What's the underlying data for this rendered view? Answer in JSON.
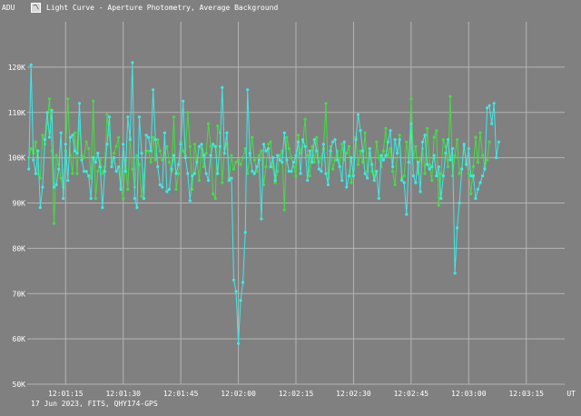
{
  "window": {
    "title": "Light Curve - Aperture Photometry, Average Background",
    "icon": "light-curve-icon"
  },
  "footer": {
    "text": "17 Jun 2023, FITS, QHY174-GPS"
  },
  "colors": {
    "background": "#808080",
    "grid": "#b4b4b4",
    "series_cyan": "#40e8e8",
    "series_green": "#44dd44",
    "text": "#ffffff"
  },
  "chart_data": {
    "type": "line",
    "ylabel": "ADU",
    "xlabel": "UT",
    "grid": true,
    "ylim": [
      50000,
      130000
    ],
    "xlim": [
      "12:01:05",
      "12:03:25"
    ],
    "x_ticks": [
      "12:01:15",
      "12:01:30",
      "12:01:45",
      "12:02:00",
      "12:02:15",
      "12:02:30",
      "12:02:45",
      "12:03:00",
      "12:03:15"
    ],
    "y_ticks": [
      {
        "value": 50000,
        "label": "50K"
      },
      {
        "value": 60000,
        "label": "60K"
      },
      {
        "value": 70000,
        "label": "70K"
      },
      {
        "value": 80000,
        "label": "80K"
      },
      {
        "value": 90000,
        "label": "90K"
      },
      {
        "value": 100000,
        "label": "100K"
      },
      {
        "value": 110000,
        "label": "110K"
      },
      {
        "value": 120000,
        "label": "120K"
      }
    ],
    "x_start": "12:01:05.4",
    "x_step_seconds": 0.6,
    "series": [
      {
        "color": "#40e8e8",
        "values": [
          97500,
          120500,
          99500,
          96500,
          101500,
          89000,
          93500,
          104000,
          110000,
          104500,
          110500,
          93500,
          94000,
          97500,
          105500,
          91000,
          103000,
          95000,
          104500,
          105000,
          101500,
          101000,
          112000,
          99500,
          97000,
          97000,
          96000,
          91000,
          100000,
          99000,
          101000,
          98000,
          89000,
          97000,
          103000,
          109000,
          98000,
          100000,
          97000,
          98000,
          93000,
          103000,
          97000,
          109000,
          104000,
          121000,
          91000,
          89000,
          109000,
          101000,
          91000,
          105000,
          104500,
          101500,
          115000,
          104000,
          98000,
          94000,
          93500,
          105500,
          92500,
          93000,
          97500,
          100500,
          96500,
          98500,
          103000,
          112500,
          100000,
          96500,
          90500,
          96000,
          96500,
          99000,
          102500,
          103000,
          100500,
          96500,
          95000,
          100500,
          103000,
          102500,
          96500,
          102500,
          115500,
          101000,
          105500,
          95000,
          95500,
          73000,
          70500,
          59000,
          68500,
          72500,
          83500,
          115000,
          101000,
          97000,
          96500,
          98000,
          99500,
          86500,
          103000,
          101500,
          102000,
          98000,
          100000,
          95000,
          100500,
          99500,
          99000,
          105500,
          99500,
          97000,
          97000,
          99000,
          100500,
          103500,
          96500,
          104000,
          102500,
          95000,
          101500,
          99000,
          104000,
          101500,
          97500,
          97000,
          103000,
          96500,
          94000,
          101500,
          103500,
          104000,
          99500,
          98000,
          95000,
          103500,
          93500,
          96000,
          100000,
          96000,
          104000,
          109500,
          106000,
          101500,
          96500,
          95500,
          102000,
          98500,
          95000,
          97000,
          91000,
          100500,
          99500,
          100500,
          103500,
          106000,
          98000,
          104000,
          101000,
          104000,
          95000,
          94500,
          87500,
          99000,
          107500,
          96000,
          94500,
          99000,
          92500,
          103500,
          105000,
          98500,
          97500,
          98000,
          100500,
          96000,
          98000,
          91000,
          96000,
          101000,
          104000,
          99500,
          102000,
          74500,
          84500,
          90000,
          97500,
          103000,
          98500,
          102000,
          96000,
          96000,
          91000,
          93000,
          94500,
          96000,
          97500,
          111000,
          111500,
          107500,
          112000,
          100000,
          103500
        ]
      },
      {
        "color": "#44dd44",
        "values": [
          100000,
          102000,
          101000,
          103500,
          96500,
          95500,
          105000,
          103000,
          107500,
          113000,
          101500,
          85500,
          100500,
          98500,
          95500,
          93500,
          101500,
          113000,
          100500,
          96500,
          105500,
          96500,
          108000,
          100500,
          100000,
          103500,
          102000,
          95500,
          112500,
          91000,
          97000,
          99500,
          96500,
          98000,
          109500,
          105000,
          99000,
          101000,
          102500,
          104500,
          93500,
          91000,
          99500,
          93000,
          104500,
          97500,
          93500,
          100500,
          98500,
          91500,
          96000,
          101500,
          101500,
          99000,
          104500,
          99500,
          104000,
          101500,
          99500,
          101000,
          102500,
          99000,
          97000,
          109000,
          93000,
          96500,
          103500,
          101500,
          100500,
          110000,
          102500,
          93000,
          103000,
          99500,
          95000,
          102000,
          98000,
          101000,
          107500,
          102500,
          92000,
          91000,
          107000,
          105500,
          94500,
          102000,
          103000,
          95500,
          100500,
          97500,
          99000,
          99500,
          98500,
          100000,
          102000,
          96500,
          100500,
          104500,
          99500,
          97000,
          100500,
          101500,
          94000,
          98000,
          103000,
          103500,
          98000,
          94500,
          97000,
          100500,
          101500,
          88500,
          104500,
          102000,
          100000,
          98000,
          96000,
          105000,
          101000,
          103500,
          108500,
          100500,
          96000,
          102500,
          99000,
          104500,
          99000,
          100000,
          102000,
          112000,
          95500,
          102500,
          97500,
          99500,
          101500,
          98000,
          103000,
          99500,
          101000,
          102500,
          94500,
          97500,
          104500,
          98500,
          101500,
          99000,
          105500,
          97000,
          101000,
          97000,
          95000,
          103500,
          100000,
          98000,
          101500,
          106500,
          100500,
          102000,
          97000,
          94000,
          101000,
          105000,
          95500,
          96000,
          103500,
          99000,
          113000,
          100000,
          102500,
          96500,
          99500,
          102000,
          96500,
          106500,
          98500,
          95000,
          104500,
          106000,
          89500,
          96500,
          104000,
          102500,
          98000,
          113500,
          96000,
          100500,
          104000,
          96500,
          97500,
          102500,
          99000,
          96500,
          92000,
          98000,
          104500,
          99000,
          105500,
          100500,
          98000,
          99500,
          103500
        ]
      }
    ]
  }
}
